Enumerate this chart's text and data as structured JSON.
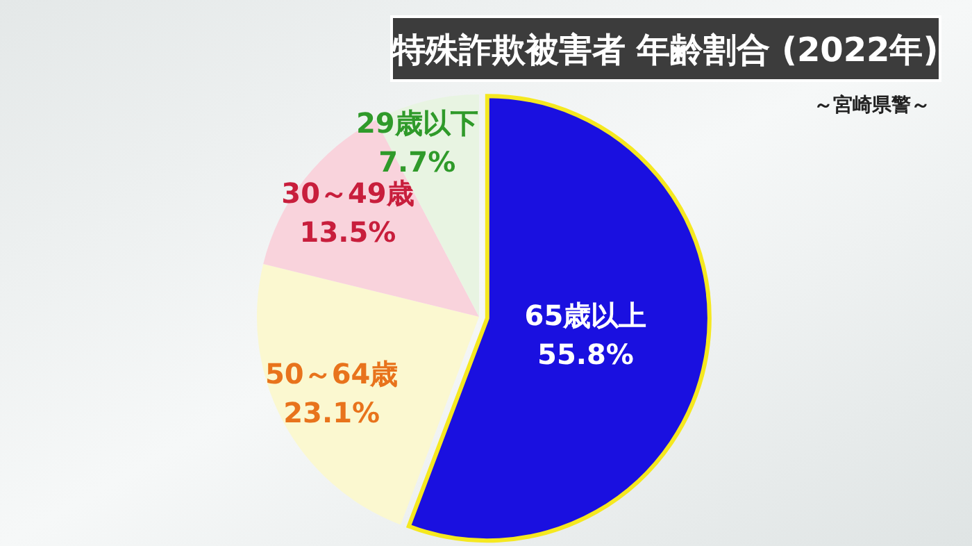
{
  "chart_data": {
    "type": "pie",
    "title": "特殊詐欺被害者 年齢割合 (2022年)",
    "subtitle": "～宮崎県警～",
    "categories": [
      "65歳以上",
      "50～64歳",
      "30～49歳",
      "29歳以下"
    ],
    "values": [
      55.8,
      23.1,
      13.5,
      7.7
    ],
    "value_labels": [
      "55.8%",
      "23.1%",
      "13.5%",
      "7.7%"
    ],
    "colors": [
      "#1a10e0",
      "#fbf8d0",
      "#f9d3dc",
      "#e8f4e2"
    ]
  }
}
